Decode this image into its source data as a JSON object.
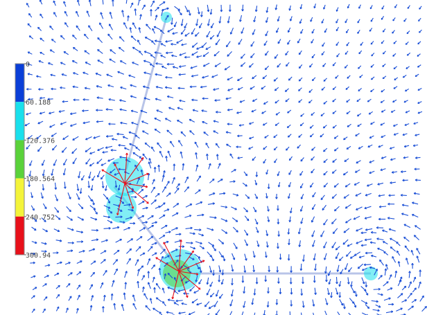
{
  "colorbar": {
    "range": [
      0,
      300.94
    ],
    "ticks": [
      0,
      60.188,
      120.376,
      180.564,
      240.752,
      300.94
    ],
    "colors": [
      "#0a3fd8",
      "#19e0ec",
      "#5ad23a",
      "#f4f43a",
      "#e8101a"
    ]
  }
}
